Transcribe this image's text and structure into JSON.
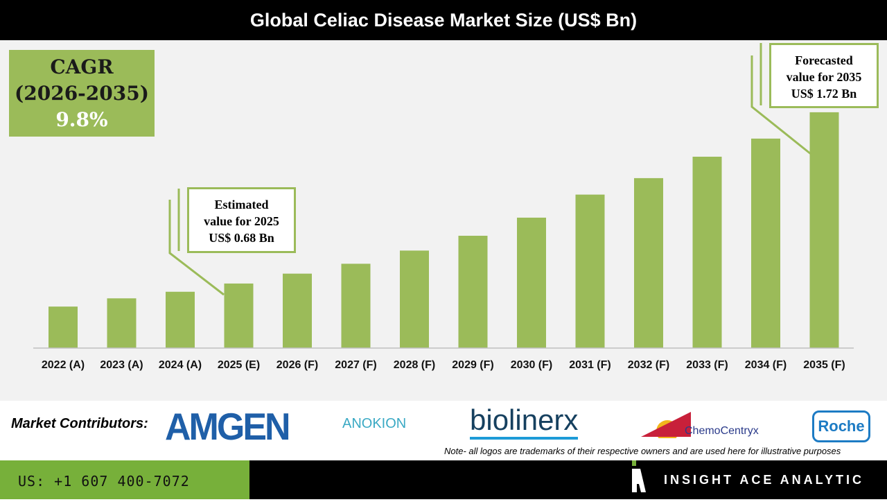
{
  "title": "Global Celiac Disease Market Size (US$ Bn)",
  "cagr": {
    "label": "CAGR",
    "period": "(2026-2035)",
    "value": "9.8%"
  },
  "callouts": {
    "estimated": {
      "line1": "Estimated",
      "line2": "value for 2025",
      "line3": "US$ 0.68 Bn"
    },
    "forecasted": {
      "line1": "Forecasted",
      "line2": "value for 2035",
      "line3": "US$ 1.72 Bn"
    }
  },
  "chart_data": {
    "type": "bar",
    "title": "Global Celiac Disease Market Size (US$ Bn)",
    "categories": [
      "2022 (A)",
      "2023 (A)",
      "2024 (A)",
      "2025 (E)",
      "2026 (F)",
      "2027 (F)",
      "2028 (F)",
      "2029 (F)",
      "2030 (F)",
      "2031 (F)",
      "2032 (F)",
      "2033 (F)",
      "2034 (F)",
      "2035 (F)"
    ],
    "values": [
      0.54,
      0.59,
      0.63,
      0.68,
      0.74,
      0.8,
      0.88,
      0.97,
      1.08,
      1.22,
      1.32,
      1.45,
      1.56,
      1.72
    ],
    "grid": false,
    "color": "#9bbb59"
  },
  "contributors": {
    "label": "Market Contributors:",
    "logos": [
      "AMGEN",
      "ANOKION",
      "biolinerx",
      "ChemoCentryx",
      "Roche"
    ],
    "note": "Note- all logos are trademarks of their respective owners and are used here for illustrative purposes"
  },
  "footer": {
    "phone": "US: +1 607 400-7072",
    "brand": "INSIGHT ACE ANALYTIC"
  }
}
